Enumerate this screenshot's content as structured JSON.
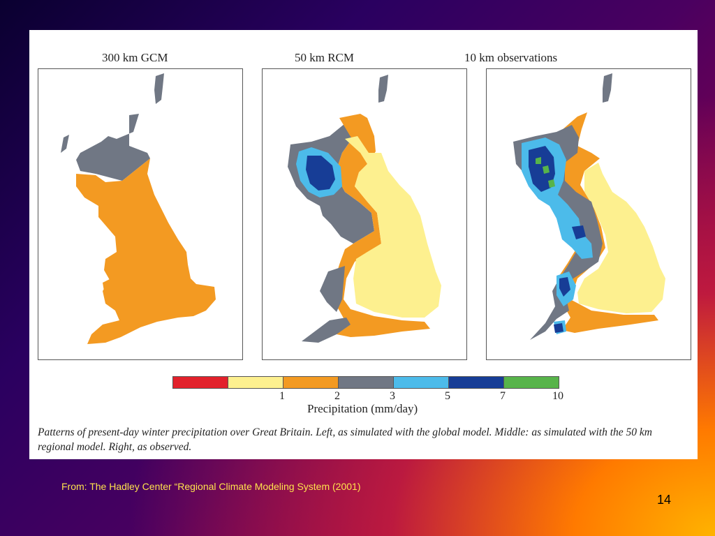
{
  "figure": {
    "panels": [
      {
        "title": "300 km GCM"
      },
      {
        "title": "50 km RCM"
      },
      {
        "title": "10 km observations"
      }
    ],
    "legend": {
      "colors": [
        "#e2212b",
        "#fdf08f",
        "#f39a22",
        "#707784",
        "#4cbbea",
        "#173d96",
        "#57b44a"
      ],
      "ticks": [
        "1",
        "2",
        "3",
        "5",
        "7",
        "10"
      ],
      "label": "Precipitation (mm/day)"
    },
    "caption": "Patterns of present-day winter precipitation over Great Britain. Left, as simulated with the global model. Middle: as simulated with the 50 km regional model. Right, as observed."
  },
  "footer": {
    "source": "From: The Hadley Center “Regional Climate Modeling System (2001)",
    "page_number": "14"
  }
}
